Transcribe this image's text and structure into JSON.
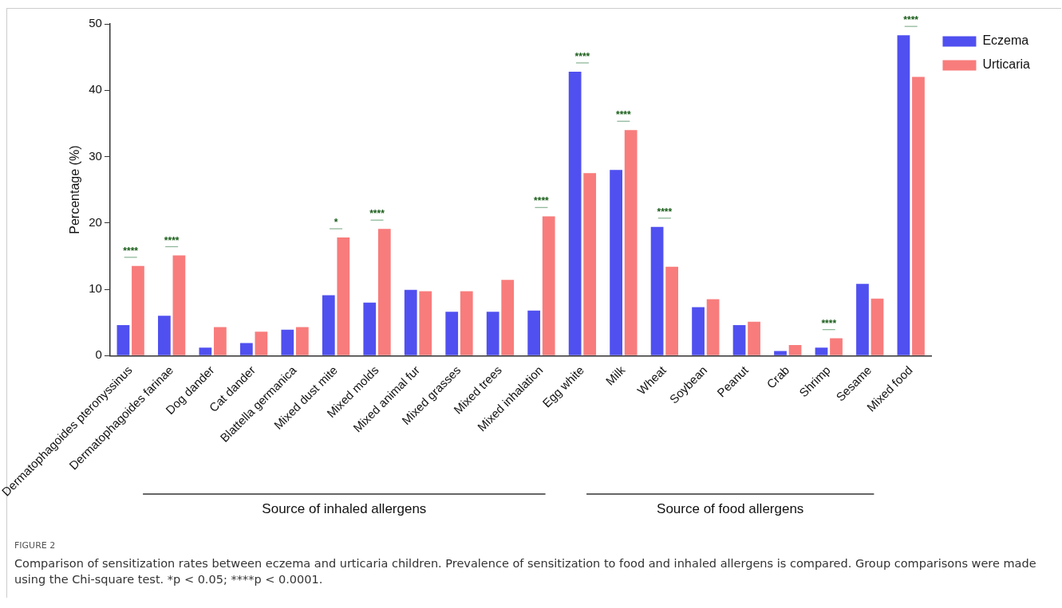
{
  "chart_data": {
    "type": "bar",
    "title": "FIGURE 2",
    "ylabel": "Percentage (%)",
    "categories": [
      "Dermatophagoides pteronyssinus",
      "Dermatophagoides farinae",
      "Dog dander",
      "Cat dander",
      "Blattella germanica",
      "Mixed dust mite",
      "Mixed molds",
      "Mixed animal fur",
      "Mixed grasses",
      "Mixed trees",
      "Mixed inhalation",
      "Egg white",
      "Milk",
      "Wheat",
      "Soybean",
      "Peanut",
      "Crab",
      "Shrimp",
      "Sesame",
      "Mixed food"
    ],
    "series": [
      {
        "name": "Eczema",
        "color": "#5050f0",
        "values": [
          4.6,
          6.0,
          1.2,
          1.9,
          3.9,
          9.1,
          8.0,
          9.9,
          6.6,
          6.6,
          6.8,
          42.8,
          28.0,
          19.4,
          7.3,
          4.6,
          0.7,
          1.2,
          10.8,
          48.3
        ]
      },
      {
        "name": "Urticaria",
        "color": "#f87c7c",
        "values": [
          13.5,
          15.1,
          4.3,
          3.6,
          4.3,
          17.8,
          19.1,
          9.7,
          9.7,
          11.4,
          21.0,
          27.5,
          34.0,
          13.4,
          8.5,
          5.1,
          1.6,
          2.6,
          8.6,
          42.0
        ]
      }
    ],
    "ylim": [
      0,
      50
    ],
    "yticks": [
      0,
      10,
      20,
      30,
      40,
      50
    ],
    "grid": false,
    "legend": "top right",
    "annotations": [
      "Source of inhaled allergens",
      "Source of food allergens",
      {
        "text": "****",
        "x": "Dermatophagoides pteronyssinus",
        "y": 13.5
      },
      {
        "text": "****",
        "x": "Dermatophagoides farinae",
        "y": 15.1
      },
      {
        "text": "*",
        "x": "Mixed dust mite",
        "y": 17.8
      },
      {
        "text": "****",
        "x": "Mixed molds",
        "y": 19.1
      },
      {
        "text": "****",
        "x": "Mixed inhalation",
        "y": 21.0
      },
      {
        "text": "****",
        "x": "Egg white",
        "y": 42.8
      },
      {
        "text": "****",
        "x": "Milk",
        "y": 34.0
      },
      {
        "text": "****",
        "x": "Wheat",
        "y": 19.4
      },
      {
        "text": "****",
        "x": "Shrimp",
        "y": 2.6
      },
      {
        "text": "****",
        "x": "Mixed food",
        "y": 48.3
      },
      "Comparison of sensitization rates between eczema and urticaria children. Prevalence of sensitization to food and inhaled allergens is compared. Group comparisons were made using the Chi-square test. *p < 0.05; ****p < 0.0001."
    ]
  }
}
